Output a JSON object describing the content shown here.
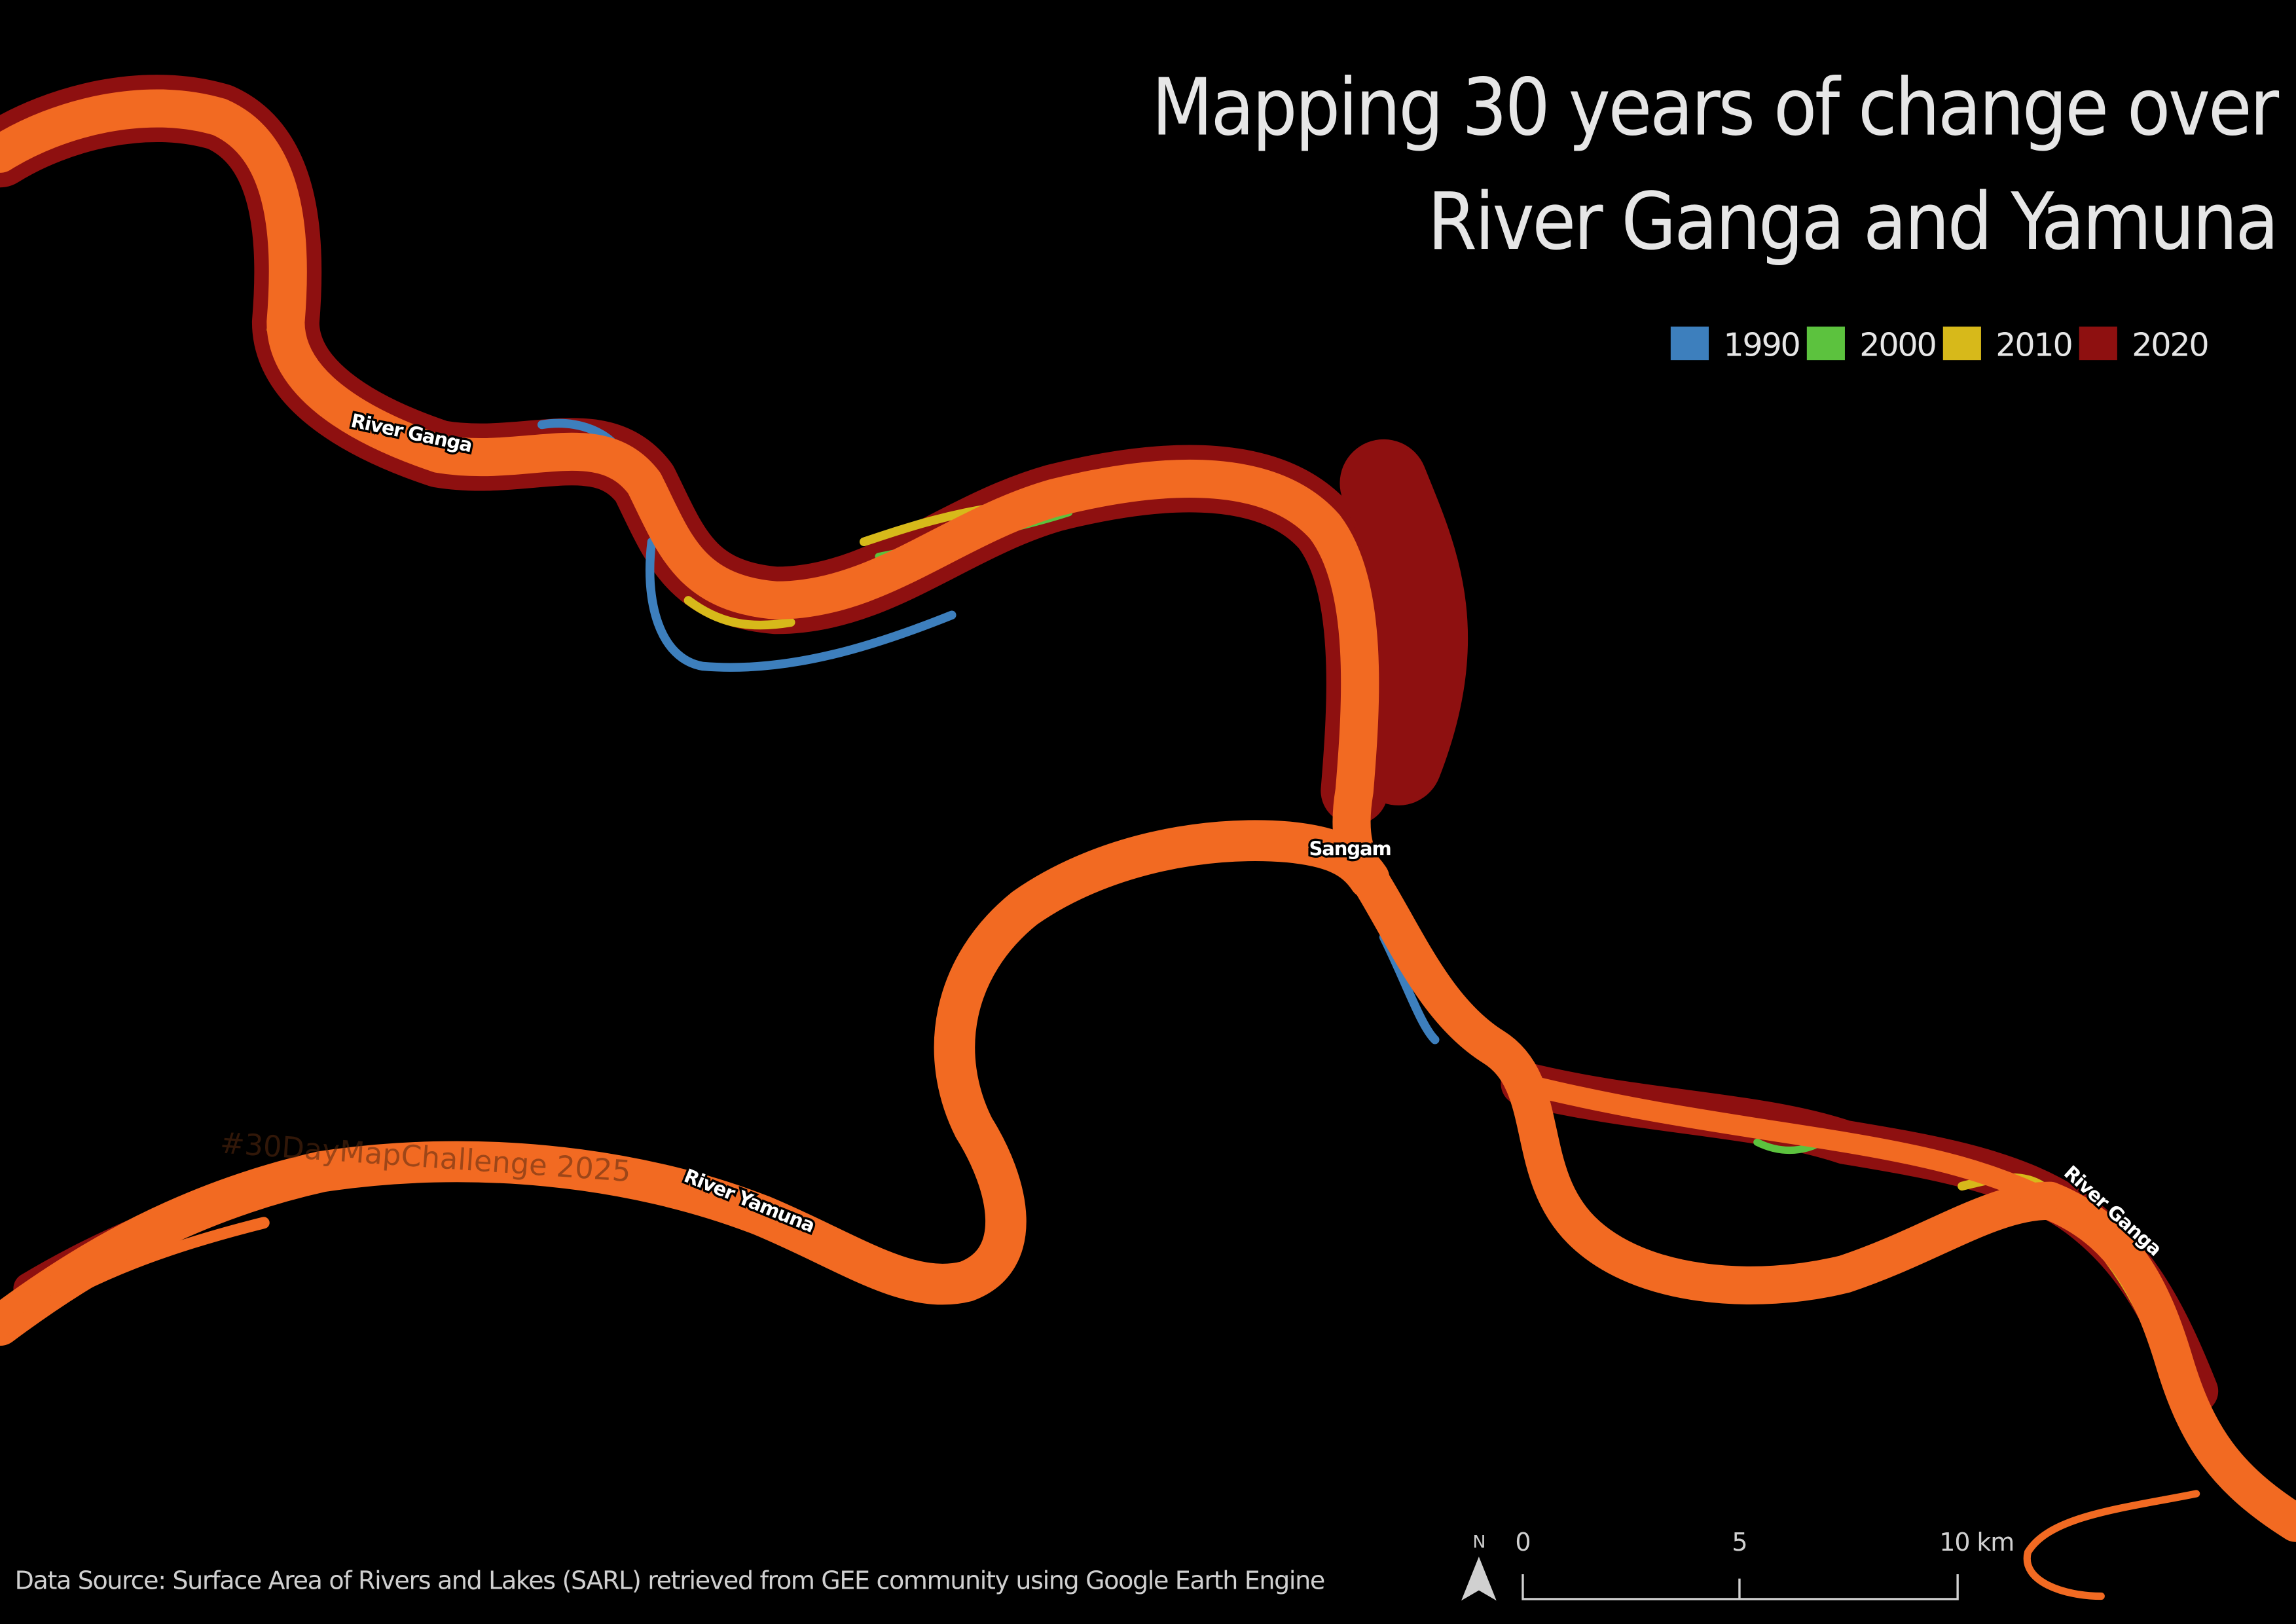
{
  "header": {
    "title_lines": [
      "Mapping 30 years of change over",
      "River Ganga and Yamuna"
    ]
  },
  "legend": {
    "items": [
      {
        "label": "1990",
        "color": "#3d7fbd"
      },
      {
        "label": "2000",
        "color": "#5cc23e"
      },
      {
        "label": "2010",
        "color": "#d7b91a"
      },
      {
        "label": "2020",
        "color": "#8e1010"
      }
    ]
  },
  "map_labels": [
    "River Ganga",
    "Sangam",
    "River Yamuna",
    "River Ganga"
  ],
  "watermark": "#30DayMapChallenge 2025",
  "scale_bar": {
    "north": "N",
    "labels": [
      "0",
      "5",
      "10 km"
    ]
  },
  "footer": {
    "source": "Data Source: Surface Area of Rivers and Lakes (SARL) retrieved from GEE community using Google Earth Engine"
  }
}
